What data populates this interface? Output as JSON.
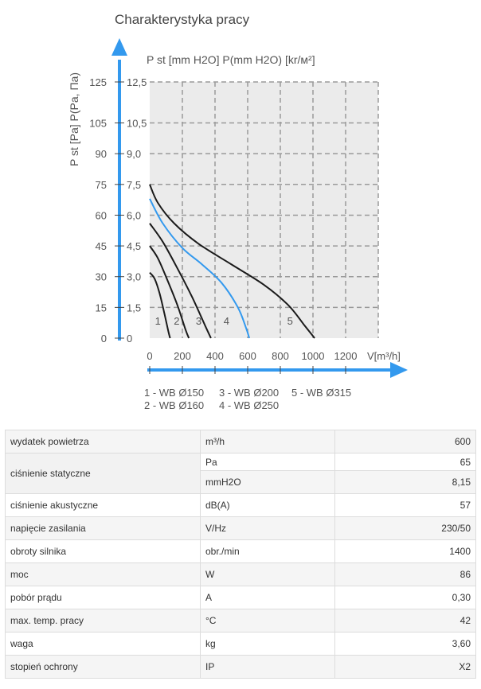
{
  "chart_data": {
    "type": "line",
    "title": "Charakterystyka pracy",
    "ylabel_left": "P st [Pa] P(Pa, Па)",
    "ylabel_right": "P st [mm H2O] P(mm H2O) [kr/м²]",
    "xlabel": "V[m³/h]",
    "x_ticks": [
      "0",
      "200",
      "400",
      "600",
      "800",
      "1000",
      "1200"
    ],
    "y_ticks_pa": [
      "0",
      "15",
      "30",
      "45",
      "60",
      "75",
      "90",
      "105",
      "125"
    ],
    "y_ticks_mm": [
      "0",
      "1,5",
      "3,0",
      "4,5",
      "6,0",
      "7,5",
      "9,0",
      "10,5",
      "12,5"
    ],
    "xlim": [
      0,
      1400
    ],
    "ylim": [
      0,
      12.5
    ],
    "grid": true,
    "series": [
      {
        "name": "1",
        "color": "#1a1a1a",
        "x": [
          0,
          30,
          60,
          90,
          115,
          125
        ],
        "y": [
          3.2,
          2.9,
          2.2,
          1.2,
          0.3,
          0
        ]
      },
      {
        "name": "2",
        "color": "#1a1a1a",
        "x": [
          0,
          50,
          110,
          170,
          220,
          240
        ],
        "y": [
          4.5,
          3.9,
          2.8,
          1.6,
          0.4,
          0
        ]
      },
      {
        "name": "3",
        "color": "#1a1a1a",
        "x": [
          0,
          80,
          170,
          260,
          340,
          375
        ],
        "y": [
          5.6,
          4.7,
          3.4,
          2.0,
          0.6,
          0
        ]
      },
      {
        "name": "4",
        "color": "#3399ee",
        "x": [
          0,
          80,
          200,
          320,
          440,
          540,
          590,
          610
        ],
        "y": [
          6.8,
          5.6,
          4.4,
          3.6,
          2.7,
          1.5,
          0.5,
          0
        ]
      },
      {
        "name": "5",
        "color": "#1a1a1a",
        "x": [
          0,
          50,
          150,
          300,
          500,
          700,
          850,
          950,
          1000,
          1010
        ],
        "y": [
          7.5,
          6.6,
          5.6,
          4.6,
          3.6,
          2.6,
          1.6,
          0.6,
          0.1,
          0
        ]
      }
    ],
    "curve_labels": [
      "1",
      "2",
      "3",
      "4",
      "5"
    ],
    "legend": {
      "row1": [
        "1 - WB Ø150",
        "3 - WB Ø200",
        "5 - WB Ø315"
      ],
      "row2": [
        "2 - WB Ø160",
        "4 - WB Ø250"
      ]
    }
  },
  "specs": {
    "rows": [
      {
        "param": "wydatek powietrza",
        "unit": "m³/h",
        "value": "600"
      },
      {
        "param": "ciśnienie statyczne",
        "unit": "Pa",
        "value": "65"
      },
      {
        "param": "",
        "unit": "mmH2O",
        "value": "8,15"
      },
      {
        "param": "ciśnienie akustyczne",
        "unit": "dB(A)",
        "value": "57"
      },
      {
        "param": "napięcie zasilania",
        "unit": "V/Hz",
        "value": "230/50"
      },
      {
        "param": "obroty silnika",
        "unit": "obr./min",
        "value": "1400"
      },
      {
        "param": "moc",
        "unit": "W",
        "value": "86"
      },
      {
        "param": "pobór prądu",
        "unit": "A",
        "value": "0,30"
      },
      {
        "param": "max. temp. pracy",
        "unit": "°C",
        "value": "42"
      },
      {
        "param": "waga",
        "unit": "kg",
        "value": "3,60"
      },
      {
        "param": "stopień ochrony",
        "unit": "IP",
        "value": "X2"
      }
    ]
  }
}
